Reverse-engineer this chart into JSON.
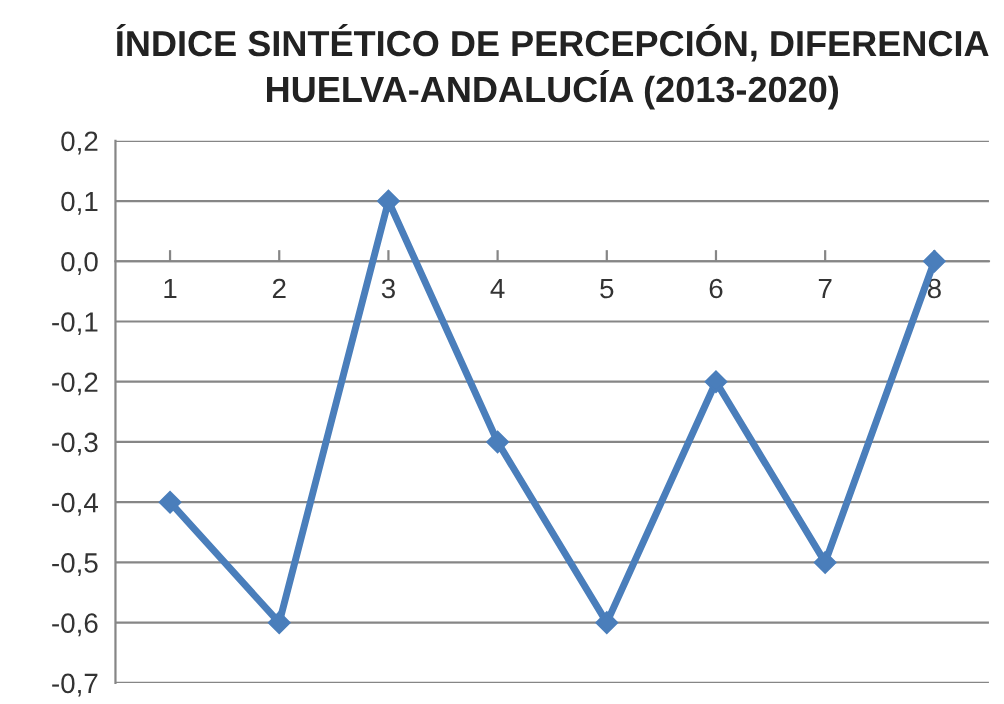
{
  "chart_data": {
    "type": "line",
    "title": "ÍNDICE SINTÉTICO DE PERCEPCIÓN, DIFERENCIA\nHUELVA-ANDALUCÍA (2013-2020)",
    "categories": [
      "1",
      "2",
      "3",
      "4",
      "5",
      "6",
      "7",
      "8"
    ],
    "series": [
      {
        "color": "#4a7ebb",
        "values": [
          -0.4,
          -0.6,
          0.1,
          -0.3,
          -0.6,
          -0.2,
          -0.5,
          0.0
        ]
      }
    ],
    "ylim": [
      -0.7,
      0.2
    ],
    "yticks": [
      {
        "value": -0.7,
        "label": "-0,7"
      },
      {
        "value": -0.6,
        "label": "-0,6"
      },
      {
        "value": -0.5,
        "label": "-0,5"
      },
      {
        "value": -0.4,
        "label": "-0,4"
      },
      {
        "value": -0.3,
        "label": "-0,3"
      },
      {
        "value": -0.2,
        "label": "-0,2"
      },
      {
        "value": -0.1,
        "label": "-0,1"
      },
      {
        "value": 0,
        "label": "0,0"
      },
      {
        "value": 0.1,
        "label": "0,1"
      },
      {
        "value": 0.2,
        "label": "0,2"
      }
    ],
    "grid": "y",
    "marker": "diamond",
    "line_style": "solid",
    "legend": false
  }
}
